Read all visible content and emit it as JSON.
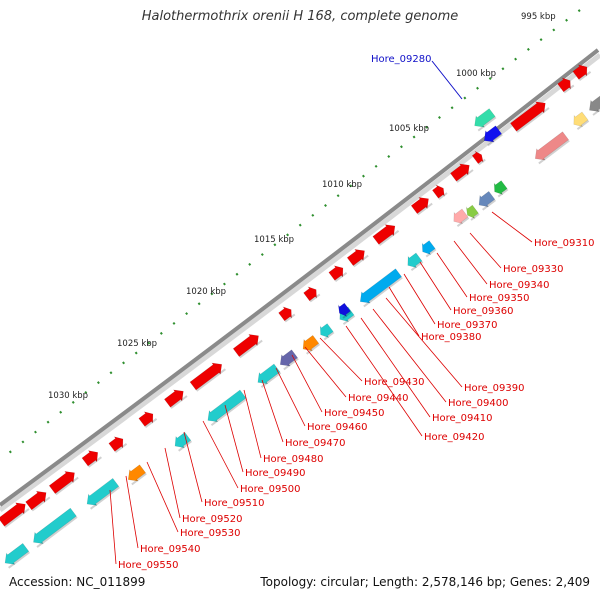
{
  "title": "Halothermothrix orenii H 168, complete genome",
  "footer": {
    "accession": "Accession: NC_011899",
    "summary": "Topology: circular; Length: 2,578,146 bp; Genes: 2,409"
  },
  "scale": {
    "ticks": [
      "995 kbp",
      "1000 kbp",
      "1005 kbp",
      "1010 kbp",
      "1015 kbp",
      "1020 kbp",
      "1025 kbp",
      "1030 kbp"
    ]
  },
  "highlighted_gene": "Hore_09280",
  "gene_labels": [
    "Hore_09310",
    "Hore_09330",
    "Hore_09340",
    "Hore_09350",
    "Hore_09360",
    "Hore_09370",
    "Hore_09380",
    "Hore_09390",
    "Hore_09400",
    "Hore_09410",
    "Hore_09420",
    "Hore_09430",
    "Hore_09440",
    "Hore_09450",
    "Hore_09460",
    "Hore_09470",
    "Hore_09480",
    "Hore_09490",
    "Hore_09500",
    "Hore_09510",
    "Hore_09520",
    "Hore_09530",
    "Hore_09540",
    "Hore_09550"
  ],
  "colors": {
    "highlight_label": "#1010c8",
    "gene_label": "#dd0000",
    "backbone": "#8a8a8a",
    "tick": "#2f8f2f"
  }
}
